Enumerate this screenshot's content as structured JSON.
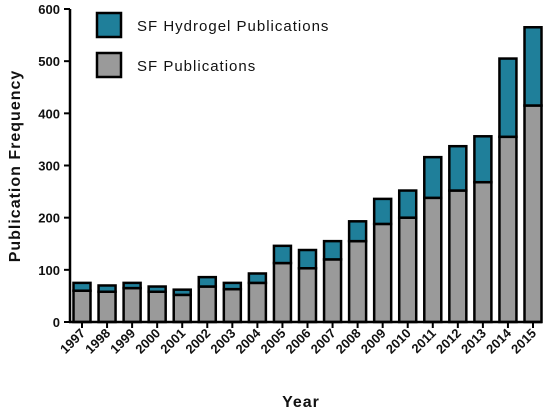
{
  "chart_data": {
    "type": "bar",
    "stacked": true,
    "xlabel": "Year",
    "ylabel": "Publication Frequency",
    "ylim": [
      0,
      600
    ],
    "yticks": [
      0,
      100,
      200,
      300,
      400,
      500,
      600
    ],
    "categories": [
      "1997",
      "1998",
      "1999",
      "2000",
      "2001",
      "2002",
      "2003",
      "2004",
      "2005",
      "2006",
      "2007",
      "2008",
      "2009",
      "2010",
      "2011",
      "2012",
      "2013",
      "2014",
      "2015"
    ],
    "series": [
      {
        "name": "SF Publications",
        "color": "#9a9a9a",
        "values": [
          60,
          58,
          65,
          58,
          52,
          68,
          63,
          75,
          113,
          103,
          120,
          155,
          188,
          200,
          238,
          252,
          268,
          355,
          415
        ]
      },
      {
        "name": "SF Hydrogel Publications",
        "color": "#1f7f9a",
        "values": [
          15,
          12,
          10,
          10,
          10,
          18,
          12,
          18,
          33,
          35,
          35,
          38,
          48,
          52,
          78,
          85,
          88,
          150,
          150
        ]
      }
    ],
    "legend": {
      "placement": "top-left",
      "order": [
        "SF Hydrogel Publications",
        "SF Publications"
      ]
    },
    "grid": false
  }
}
